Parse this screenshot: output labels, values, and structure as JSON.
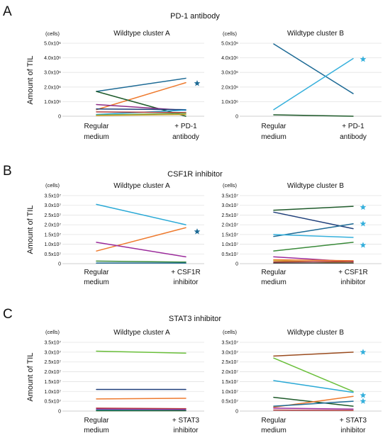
{
  "chart_data": [
    {
      "type": "line",
      "panel_letter": "A",
      "panel_title": "PD-1 antibody",
      "ylabel": "Amount of TIL",
      "unit": "(cells)",
      "charts": [
        {
          "title": "Wildtype cluster A",
          "categories": [
            [
              "Regular",
              "medium"
            ],
            [
              "+ PD-1",
              "antibody"
            ]
          ],
          "ylim": [
            0,
            5000000
          ],
          "ticks": [
            0,
            1000000,
            2000000,
            3000000,
            4000000,
            5000000
          ],
          "tick_labels": [
            "0",
            "1.0x10⁶",
            "2.0x10⁶",
            "3.0x10⁶",
            "4.0x10⁶",
            "5.0x10⁶"
          ],
          "series": [
            {
              "values": [
                1700000,
                2600000
              ],
              "color": "#1d6a95"
            },
            {
              "values": [
                450000,
                2300000
              ],
              "color": "#ee7a2e"
            },
            {
              "values": [
                1700000,
                0
              ],
              "color": "#1e5a2a"
            },
            {
              "values": [
                800000,
                400000
              ],
              "color": "#8e2b86"
            },
            {
              "values": [
                500000,
                450000
              ],
              "color": "#1f3f7a"
            },
            {
              "values": [
                120000,
                420000
              ],
              "color": "#2aa9d6"
            },
            {
              "values": [
                300000,
                250000
              ],
              "color": "#b23a3a"
            },
            {
              "values": [
                80000,
                200000
              ],
              "color": "#6aa84f"
            },
            {
              "values": [
                50000,
                120000
              ],
              "color": "#caa02a"
            }
          ],
          "stars": [
            {
              "value": 2250000,
              "color": "#1d6a95"
            }
          ]
        },
        {
          "title": "Wildtype cluster B",
          "categories": [
            [
              "Regular",
              "medium"
            ],
            [
              "+ PD-1",
              "antibody"
            ]
          ],
          "ylim": [
            0,
            5000000
          ],
          "ticks": [
            0,
            1000000,
            2000000,
            3000000,
            4000000,
            5000000
          ],
          "tick_labels": [
            "0",
            "1.0x10⁶",
            "2.0x10⁶",
            "3.0x10⁶",
            "4.0x10⁶",
            "5.0x10⁶"
          ],
          "series": [
            {
              "values": [
                4950000,
                1550000
              ],
              "color": "#1d6a95"
            },
            {
              "values": [
                450000,
                3950000
              ],
              "color": "#36b0dc"
            },
            {
              "values": [
                100000,
                0
              ],
              "color": "#1e5a2a"
            }
          ],
          "stars": [
            {
              "value": 3900000,
              "color": "#36b0dc"
            }
          ]
        }
      ]
    },
    {
      "type": "line",
      "panel_letter": "B",
      "panel_title": "CSF1R inhibitor",
      "ylabel": "Amount of TIL",
      "unit": "(cells)",
      "charts": [
        {
          "title": "Wildtype cluster A",
          "categories": [
            [
              "Regular",
              "medium"
            ],
            [
              "+ CSF1R",
              "inhibitor"
            ]
          ],
          "ylim": [
            0,
            35000000
          ],
          "ticks": [
            0,
            5000000,
            10000000,
            15000000,
            20000000,
            25000000,
            30000000,
            35000000
          ],
          "tick_labels": [
            "0",
            "0.5x10⁷",
            "1.0x10⁷",
            "1.5x10⁷",
            "2.0x10⁷",
            "2.5x10⁷",
            "3.0x10⁷",
            "3.5x10⁷"
          ],
          "series": [
            {
              "values": [
                30500000,
                20000000
              ],
              "color": "#2aa9d6"
            },
            {
              "values": [
                6500000,
                18500000
              ],
              "color": "#ee7a2e"
            },
            {
              "values": [
                11000000,
                3500000
              ],
              "color": "#9b2b9b"
            },
            {
              "values": [
                1300000,
                800000
              ],
              "color": "#3a8a3a"
            },
            {
              "values": [
                300000,
                300000
              ],
              "color": "#1d6a95"
            }
          ],
          "stars": [
            {
              "value": 16500000,
              "color": "#1d6a95"
            }
          ]
        },
        {
          "title": "Wildtype cluster B",
          "categories": [
            [
              "Regular",
              "medium"
            ],
            [
              "+ CSF1R",
              "inhibitor"
            ]
          ],
          "ylim": [
            0,
            35000000
          ],
          "ticks": [
            0,
            5000000,
            10000000,
            15000000,
            20000000,
            25000000,
            30000000,
            35000000
          ],
          "tick_labels": [
            "0",
            "0.5x10⁷",
            "1.0x10⁷",
            "1.5x10⁷",
            "2.0x10⁷",
            "2.5x10⁷",
            "3.0x10⁷",
            "3.5x10⁷"
          ],
          "series": [
            {
              "values": [
                27500000,
                29500000
              ],
              "color": "#1e5a2a"
            },
            {
              "values": [
                26500000,
                18000000
              ],
              "color": "#1f3f7a"
            },
            {
              "values": [
                14000000,
                20500000
              ],
              "color": "#1d6a95"
            },
            {
              "values": [
                15000000,
                13500000
              ],
              "color": "#36b0dc"
            },
            {
              "values": [
                6500000,
                11000000
              ],
              "color": "#3a8a3a"
            },
            {
              "values": [
                3500000,
                1000000
              ],
              "color": "#9b2b9b"
            },
            {
              "values": [
                2000000,
                1500000
              ],
              "color": "#ee7a2e"
            },
            {
              "values": [
                1500000,
                500000
              ],
              "color": "#caa02a"
            },
            {
              "values": [
                800000,
                1200000
              ],
              "color": "#b23a3a"
            },
            {
              "values": [
                300000,
                300000
              ],
              "color": "#444444"
            }
          ],
          "stars": [
            {
              "value": 29000000,
              "color": "#36b0dc"
            },
            {
              "value": 20500000,
              "color": "#36b0dc"
            },
            {
              "value": 9500000,
              "color": "#36b0dc"
            }
          ]
        }
      ]
    },
    {
      "type": "line",
      "panel_letter": "C",
      "panel_title": "STAT3 inhibitor",
      "ylabel": "Amount of TIL",
      "unit": "(cells)",
      "charts": [
        {
          "title": "Wildtype cluster A",
          "categories": [
            [
              "Regular",
              "medium"
            ],
            [
              "+ STAT3",
              "inhibitor"
            ]
          ],
          "ylim": [
            0,
            35000000
          ],
          "ticks": [
            0,
            5000000,
            10000000,
            15000000,
            20000000,
            25000000,
            30000000,
            35000000
          ],
          "tick_labels": [
            "0",
            "0.5x10⁷",
            "1.0x10⁷",
            "1.5x10⁷",
            "2.0x10⁷",
            "2.5x10⁷",
            "3.0x10⁷",
            "3.5x10⁷"
          ],
          "series": [
            {
              "values": [
                30500000,
                29500000
              ],
              "color": "#6abf3a"
            },
            {
              "values": [
                11000000,
                11000000
              ],
              "color": "#1f3f7a"
            },
            {
              "values": [
                6200000,
                6500000
              ],
              "color": "#ee7a2e"
            },
            {
              "values": [
                1500000,
                1200000
              ],
              "color": "#b23a3a"
            },
            {
              "values": [
                1000000,
                800000
              ],
              "color": "#9b2b9b"
            },
            {
              "values": [
                500000,
                300000
              ],
              "color": "#2aa9d6"
            },
            {
              "values": [
                200000,
                200000
              ],
              "color": "#1e5a2a"
            }
          ],
          "stars": []
        },
        {
          "title": "Wildtype cluster B",
          "categories": [
            [
              "Regular",
              "medium"
            ],
            [
              "+ STAT3",
              "inhibitor"
            ]
          ],
          "ylim": [
            0,
            35000000
          ],
          "ticks": [
            0,
            5000000,
            10000000,
            15000000,
            20000000,
            25000000,
            30000000,
            35000000
          ],
          "tick_labels": [
            "0",
            "0.5x10⁷",
            "1.0x10⁷",
            "1.5x10⁷",
            "2.0x10⁷",
            "2.5x10⁷",
            "3.0x10⁷",
            "3.5x10⁷"
          ],
          "series": [
            {
              "values": [
                28000000,
                30000000
              ],
              "color": "#9a4b1e"
            },
            {
              "values": [
                27000000,
                10000000
              ],
              "color": "#6abf3a"
            },
            {
              "values": [
                15500000,
                9500000
              ],
              "color": "#2aa9d6"
            },
            {
              "values": [
                7000000,
                2500000
              ],
              "color": "#1e5a2a"
            },
            {
              "values": [
                2000000,
                7500000
              ],
              "color": "#ee7a2e"
            },
            {
              "values": [
                2500000,
                5000000
              ],
              "color": "#1d6a95"
            },
            {
              "values": [
                1500000,
                1000000
              ],
              "color": "#9b2b9b"
            },
            {
              "values": [
                500000,
                300000
              ],
              "color": "#b23a3a"
            }
          ],
          "stars": [
            {
              "value": 30000000,
              "color": "#36b0dc"
            },
            {
              "value": 8000000,
              "color": "#36b0dc"
            },
            {
              "value": 5000000,
              "color": "#36b0dc"
            }
          ]
        }
      ]
    }
  ]
}
